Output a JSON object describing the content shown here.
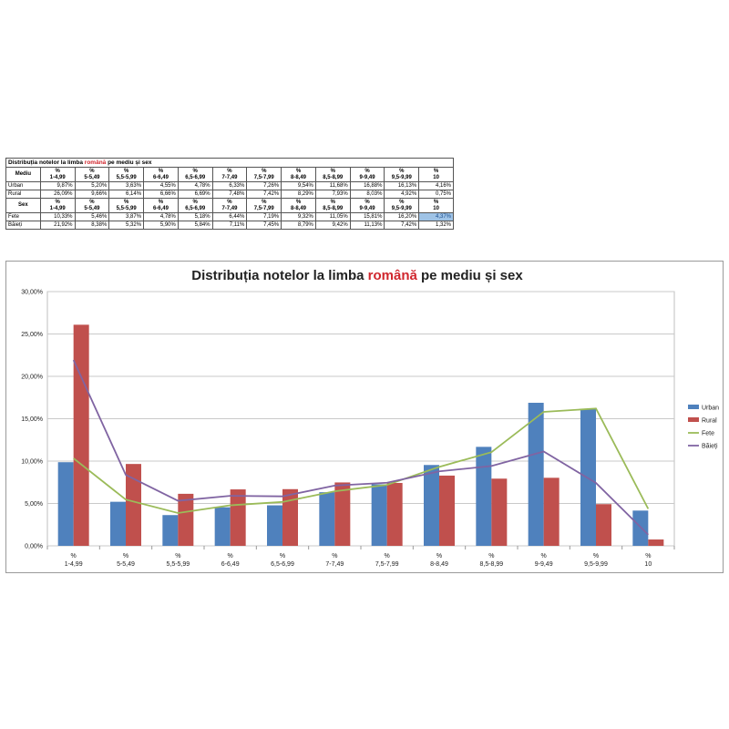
{
  "table": {
    "title_pre": "Distribuția notelor la limba ",
    "title_hl": "română",
    "title_post": " pe mediu și sex",
    "group1_header": "Mediu",
    "group2_header": "Sex",
    "pct_symbol": "%",
    "intervals": [
      "1-4,99",
      "5-5,49",
      "5,5-5,99",
      "6-6,49",
      "6,5-6,99",
      "7-7,49",
      "7,5-7,99",
      "8-8,49",
      "8,5-8,99",
      "9-9,49",
      "9,5-9,99",
      "10"
    ],
    "group1_rows": [
      {
        "label": "Urban",
        "values": [
          "9,87%",
          "5,20%",
          "3,63%",
          "4,55%",
          "4,78%",
          "6,33%",
          "7,26%",
          "9,54%",
          "11,68%",
          "16,88%",
          "16,13%",
          "4,16%"
        ]
      },
      {
        "label": "Rural",
        "values": [
          "26,09%",
          "9,66%",
          "6,14%",
          "6,66%",
          "6,69%",
          "7,48%",
          "7,42%",
          "8,29%",
          "7,93%",
          "8,03%",
          "4,92%",
          "0,75%"
        ]
      }
    ],
    "group2_rows": [
      {
        "label": "Fete",
        "values": [
          "10,33%",
          "5,46%",
          "3,87%",
          "4,78%",
          "5,18%",
          "6,44%",
          "7,19%",
          "9,32%",
          "11,05%",
          "15,81%",
          "16,20%",
          "4,37%"
        ]
      },
      {
        "label": "Băieți",
        "values": [
          "21,92%",
          "8,38%",
          "5,32%",
          "5,90%",
          "5,84%",
          "7,11%",
          "7,45%",
          "8,79%",
          "9,42%",
          "11,13%",
          "7,42%",
          "1,32%"
        ]
      }
    ]
  },
  "chart_data": {
    "type": "bar",
    "title_pre": "Distribuția notelor la limba ",
    "title_hl": "română",
    "title_post": " pe mediu și sex",
    "categories": [
      "%\n1-4,99",
      "%\n5-5,49",
      "%\n5,5-5,99",
      "%\n6-6,49",
      "%\n6,5-6,99",
      "%\n7-7,49",
      "%\n7,5-7,99",
      "%\n8-8,49",
      "%\n8,5-8,99",
      "%\n9-9,49",
      "%\n9,5-9,99",
      "%\n10"
    ],
    "y_ticks": [
      "0,00%",
      "5,00%",
      "10,00%",
      "15,00%",
      "20,00%",
      "25,00%",
      "30,00%"
    ],
    "ylim": [
      0,
      30
    ],
    "grid": true,
    "legend_position": "right",
    "series": [
      {
        "name": "Urban",
        "kind": "bar",
        "color": "#4f81bd",
        "values": [
          9.87,
          5.2,
          3.63,
          4.55,
          4.78,
          6.33,
          7.26,
          9.54,
          11.68,
          16.88,
          16.13,
          4.16
        ]
      },
      {
        "name": "Rural",
        "kind": "bar",
        "color": "#c0504d",
        "values": [
          26.09,
          9.66,
          6.14,
          6.66,
          6.69,
          7.48,
          7.42,
          8.29,
          7.93,
          8.03,
          4.92,
          0.75
        ]
      },
      {
        "name": "Fete",
        "kind": "line",
        "color": "#9bbb59",
        "values": [
          10.33,
          5.46,
          3.87,
          4.78,
          5.18,
          6.44,
          7.19,
          9.32,
          11.05,
          15.81,
          16.2,
          4.37
        ]
      },
      {
        "name": "Băieți",
        "kind": "line",
        "color": "#8064a2",
        "values": [
          21.92,
          8.38,
          5.32,
          5.9,
          5.84,
          7.11,
          7.45,
          8.79,
          9.42,
          11.13,
          7.42,
          1.32
        ]
      }
    ]
  }
}
